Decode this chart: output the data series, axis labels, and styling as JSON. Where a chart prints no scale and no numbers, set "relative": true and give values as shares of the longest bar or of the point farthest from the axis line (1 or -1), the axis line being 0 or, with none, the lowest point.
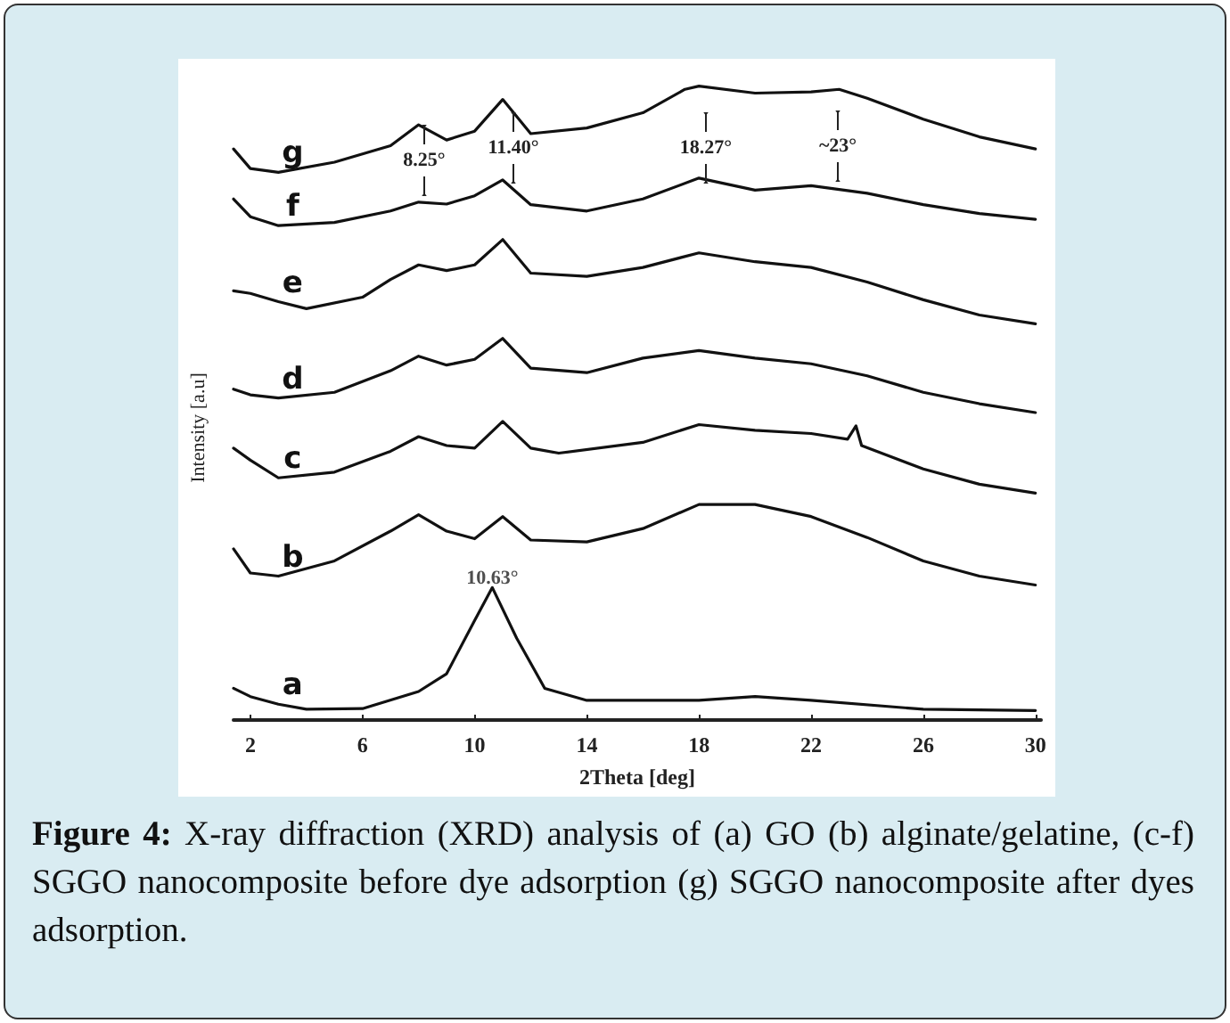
{
  "chart_data": {
    "type": "line",
    "relative": true,
    "xlabel": "2Theta [deg]",
    "ylabel": "Intensity [a.u]",
    "xlim": [
      1.4,
      30.2
    ],
    "xticks": [
      2,
      6,
      10,
      14,
      18,
      22,
      26,
      30
    ],
    "tick_labels": "x",
    "marker": "none",
    "line_style": "solid",
    "annotations": [
      {
        "text": "10.63°",
        "x": 10.63,
        "y": 0.223
      },
      "8.25°",
      "11.40°",
      "18.27°",
      "~23°",
      "Figure 4: X-ray diffraction (XRD) analysis of (a) GO (b) alginate/gelatine, (c-f) SGGO nanocomposite before dye adsorption (g) SGGO nanocomposite after dyes adsorption."
    ],
    "series": [
      {
        "name": "a",
        "color": "#111111",
        "x": [
          1.4,
          2,
          3,
          4,
          6,
          8,
          9,
          10,
          10.63,
          11.5,
          12.5,
          14,
          18,
          20,
          22,
          26,
          30
        ],
        "values": [
          0.05,
          0.037,
          0.025,
          0.017,
          0.018,
          0.045,
          0.073,
          0.157,
          0.209,
          0.129,
          0.05,
          0.031,
          0.031,
          0.037,
          0.031,
          0.017,
          0.015
        ]
      },
      {
        "name": "b",
        "color": "#111111",
        "x": [
          1.4,
          2,
          3,
          5,
          7,
          8,
          9,
          10,
          11,
          12,
          14,
          16,
          18,
          20,
          22,
          24,
          26,
          28,
          30
        ],
        "values": [
          0.27,
          0.232,
          0.227,
          0.251,
          0.298,
          0.324,
          0.298,
          0.286,
          0.321,
          0.284,
          0.281,
          0.302,
          0.34,
          0.34,
          0.321,
          0.288,
          0.251,
          0.227,
          0.213
        ]
      },
      {
        "name": "c",
        "color": "#111111",
        "x": [
          1.4,
          2,
          3,
          5,
          7,
          8,
          9,
          10,
          11,
          12,
          13,
          16,
          18,
          20,
          22,
          23.3,
          23.6,
          23.8,
          26,
          28,
          30
        ],
        "values": [
          0.429,
          0.41,
          0.382,
          0.391,
          0.424,
          0.447,
          0.433,
          0.429,
          0.471,
          0.429,
          0.421,
          0.438,
          0.466,
          0.457,
          0.452,
          0.443,
          0.464,
          0.433,
          0.396,
          0.372,
          0.358
        ]
      },
      {
        "name": "d",
        "color": "#111111",
        "x": [
          1.4,
          2,
          3,
          5,
          7,
          8,
          9,
          10,
          11,
          12,
          14,
          16,
          18,
          20,
          22,
          24,
          26,
          28,
          30
        ],
        "values": [
          0.522,
          0.513,
          0.508,
          0.517,
          0.551,
          0.574,
          0.56,
          0.569,
          0.602,
          0.555,
          0.548,
          0.571,
          0.583,
          0.571,
          0.562,
          0.543,
          0.517,
          0.499,
          0.485
        ]
      },
      {
        "name": "e",
        "color": "#111111",
        "x": [
          1.4,
          2,
          3,
          4,
          6,
          7,
          8,
          9,
          10,
          11,
          12,
          14,
          16,
          18,
          20,
          22,
          24,
          26,
          28,
          30
        ],
        "values": [
          0.677,
          0.673,
          0.66,
          0.649,
          0.667,
          0.695,
          0.718,
          0.709,
          0.718,
          0.758,
          0.705,
          0.7,
          0.714,
          0.737,
          0.723,
          0.714,
          0.691,
          0.663,
          0.639,
          0.625
        ]
      },
      {
        "name": "f",
        "color": "#111111",
        "x": [
          1.4,
          2,
          3,
          5,
          7,
          8,
          9,
          10,
          11,
          12,
          14,
          16,
          18,
          20,
          22,
          24,
          26,
          28,
          30
        ],
        "values": [
          0.822,
          0.794,
          0.78,
          0.785,
          0.803,
          0.817,
          0.814,
          0.827,
          0.852,
          0.813,
          0.803,
          0.822,
          0.855,
          0.836,
          0.843,
          0.831,
          0.813,
          0.799,
          0.79
        ]
      },
      {
        "name": "g",
        "color": "#111111",
        "x": [
          1.4,
          2,
          3,
          5,
          7,
          8,
          9,
          10,
          11,
          12,
          14,
          16,
          17.5,
          18,
          20,
          22,
          23,
          24,
          26,
          28,
          30
        ],
        "values": [
          0.901,
          0.87,
          0.864,
          0.88,
          0.906,
          0.939,
          0.915,
          0.929,
          0.979,
          0.925,
          0.934,
          0.958,
          0.995,
          1,
          0.989,
          0.991,
          0.995,
          0.981,
          0.948,
          0.92,
          0.901
        ]
      }
    ]
  }
}
